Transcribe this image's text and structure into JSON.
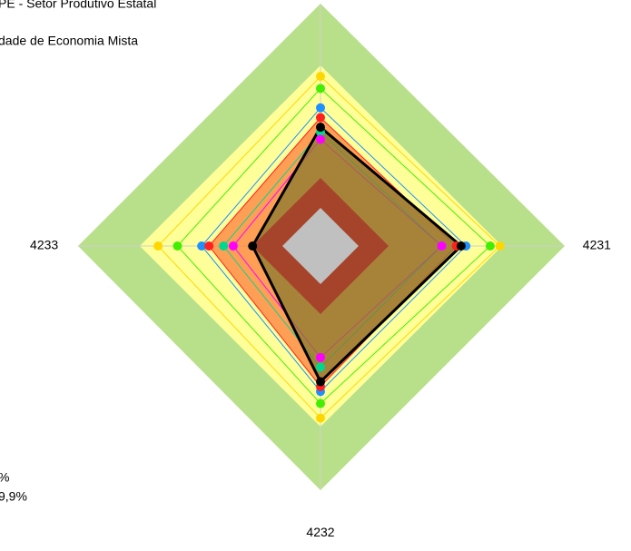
{
  "chart_data": {
    "type": "radar",
    "title": "PE - Setor Produtivo Estatal",
    "subtitle": "dade de Economia Mista",
    "legend_fragments": [
      "%",
      "9,9%"
    ],
    "categories": [
      null,
      "4231",
      "4232",
      "4233"
    ],
    "rlim": [
      0,
      100
    ],
    "series": [
      {
        "color": "#ffd700",
        "values": [
          70,
          74,
          71,
          67
        ]
      },
      {
        "color": "#44ee00",
        "values": [
          65,
          70,
          65,
          59
        ]
      },
      {
        "color": "#1e90ff",
        "values": [
          57,
          60,
          60,
          49
        ]
      },
      {
        "color": "#ff2020",
        "fill": "#ff7f3f",
        "values": [
          53,
          56,
          58,
          46
        ]
      },
      {
        "color": "#00d890",
        "values": [
          47,
          50,
          50,
          40
        ]
      },
      {
        "color": "#ff00ff",
        "values": [
          44,
          50,
          46,
          36
        ]
      },
      {
        "color": "#000000",
        "fill": "#8a7a30",
        "values": [
          49,
          58,
          56,
          28
        ]
      }
    ]
  }
}
